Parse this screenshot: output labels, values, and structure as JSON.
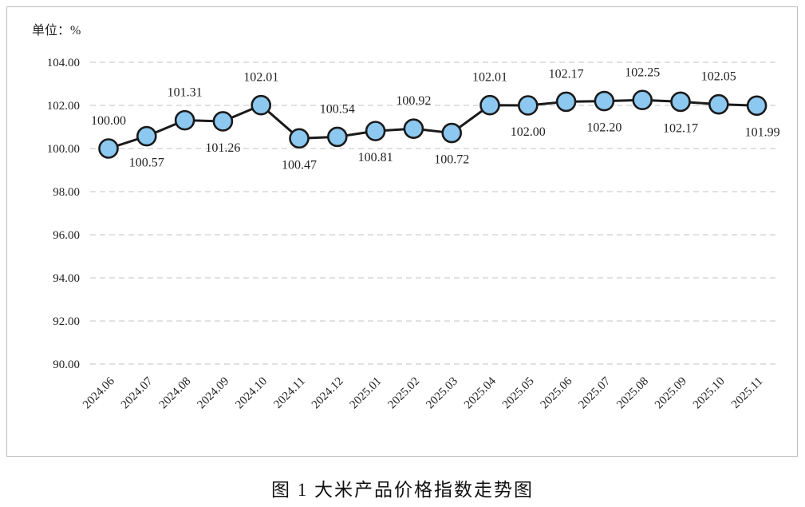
{
  "caption": "图 1  大米产品价格指数走势图",
  "chart_data": {
    "type": "line",
    "unit_label": "单位：%",
    "ylim": [
      90,
      104
    ],
    "y_ticks": [
      "90.00",
      "92.00",
      "94.00",
      "96.00",
      "98.00",
      "100.00",
      "102.00",
      "104.00"
    ],
    "grid": "horizontal dashed",
    "categories": [
      "2024.06",
      "2024.07",
      "2024.08",
      "2024.09",
      "2024.10",
      "2024.11",
      "2024.12",
      "2025.01",
      "2025.02",
      "2025.03",
      "2025.04",
      "2025.05",
      "2025.06",
      "2025.07",
      "2025.08",
      "2025.09",
      "2025.10",
      "2025.11"
    ],
    "series": [
      {
        "values": [
          100.0,
          100.57,
          101.31,
          101.26,
          102.01,
          100.47,
          100.54,
          100.81,
          100.92,
          100.72,
          102.01,
          102.0,
          102.17,
          102.2,
          102.25,
          102.17,
          102.05,
          101.99
        ],
        "data_labels": [
          "100.00",
          "100.57",
          "101.31",
          "101.26",
          "102.01",
          "100.47",
          "100.54",
          "100.81",
          "100.92",
          "100.72",
          "102.01",
          "102.00",
          "102.17",
          "102.20",
          "102.25",
          "102.17",
          "102.05",
          "101.99"
        ],
        "line_color": "#1a1a1a",
        "marker_fill": "#8cc8f0",
        "marker_stroke": "#1a1a1a"
      }
    ]
  }
}
